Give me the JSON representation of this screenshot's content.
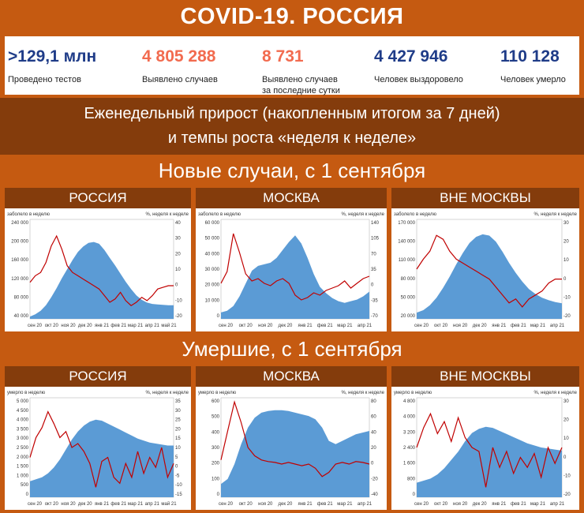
{
  "title": "COVID-19. РОССИЯ",
  "stats": [
    {
      "value": ">129,1 млн",
      "label": "Проведено тестов",
      "color": "#1f3c88"
    },
    {
      "value": "4 805 288",
      "label": "Выявлено случаев",
      "color": "#f26b4f"
    },
    {
      "value": "8 731",
      "label": "Выявлено случаев\nза последние сутки",
      "color": "#f26b4f"
    },
    {
      "value": "4 427 946",
      "label": "Человек выздоровело",
      "color": "#1f3c88"
    },
    {
      "value": "110 128",
      "label": "Человек умерло",
      "color": "#1f3c88"
    }
  ],
  "subtitle": {
    "line1": "Еженедельный прирост (накопленным итогом за 7 дней)",
    "line2": "и темпы роста «неделя к неделе»"
  },
  "sections": {
    "cases": "Новые случаи, с 1 сентября",
    "deaths": "Умершие, с 1 сентября"
  },
  "colors": {
    "band": "#c55a11",
    "band_dark": "#843c0c",
    "area": "#5b9bd5",
    "line": "#c00000"
  },
  "chart_data": [
    {
      "type": "area",
      "title": "РОССИЯ",
      "ylabel_left": "заболело в неделю",
      "ylabel_right": "%, неделя к неделе",
      "left_ticks": [
        "240 000",
        "200 000",
        "160 000",
        "120 000",
        "80 000",
        "40 000"
      ],
      "left_range": [
        30000,
        250000
      ],
      "right_ticks": [
        "40",
        "30",
        "20",
        "10",
        "0",
        "-10",
        "-20"
      ],
      "right_range": [
        -20,
        40
      ],
      "x_ticks": [
        "сен 20",
        "окт 20",
        "ноя 20",
        "дек 20",
        "янв 21",
        "фев 21",
        "мар 21",
        "апр 21",
        "май 21"
      ],
      "series": [
        {
          "name": "заболело в неделю",
          "values": [
            35000,
            40000,
            48000,
            60000,
            78000,
            98000,
            120000,
            140000,
            160000,
            178000,
            190000,
            198000,
            200000,
            196000,
            182000,
            165000,
            148000,
            130000,
            112000,
            96000,
            82000,
            72000,
            66000,
            63000,
            62000,
            61000,
            60000,
            60000
          ]
        },
        {
          "name": "%, неделя к неделе",
          "values": [
            2,
            6,
            8,
            14,
            24,
            30,
            22,
            12,
            8,
            6,
            4,
            2,
            0,
            -2,
            -6,
            -10,
            -8,
            -4,
            -9,
            -12,
            -10,
            -7,
            -9,
            -6,
            -2,
            -1,
            0,
            0
          ]
        }
      ]
    },
    {
      "type": "area",
      "title": "МОСКВА",
      "ylabel_left": "заболело в неделю",
      "ylabel_right": "%, неделя к неделе",
      "left_ticks": [
        "60 000",
        "50 000",
        "40 000",
        "30 000",
        "20 000",
        "10 000",
        "0"
      ],
      "left_range": [
        0,
        62000
      ],
      "right_ticks": [
        "140",
        "105",
        "70",
        "35",
        "0",
        "-35",
        "-70"
      ],
      "right_range": [
        -70,
        140
      ],
      "x_ticks": [
        "сен 20",
        "окт 20",
        "ноя 20",
        "дек 20",
        "янв 21",
        "фев 21",
        "мар 21",
        "апр 21"
      ],
      "series": [
        {
          "name": "заболело в неделю",
          "values": [
            4000,
            5000,
            8000,
            14000,
            22000,
            30000,
            33000,
            34000,
            35000,
            38000,
            43000,
            48000,
            52000,
            47000,
            38000,
            28000,
            20000,
            16000,
            13000,
            11000,
            10000,
            11000,
            12000,
            14000,
            17000
          ]
        },
        {
          "name": "%, неделя к неделе",
          "values": [
            5,
            30,
            110,
            70,
            25,
            10,
            15,
            5,
            0,
            10,
            15,
            5,
            -20,
            -30,
            -25,
            -15,
            -20,
            -10,
            -5,
            0,
            10,
            -5,
            5,
            15,
            20
          ]
        }
      ]
    },
    {
      "type": "area",
      "title": "ВНЕ МОСКВЫ",
      "ylabel_left": "заболело в неделю",
      "ylabel_right": "%, неделя к неделе",
      "left_ticks": [
        "170 000",
        "140 000",
        "110 000",
        "80 000",
        "50 000",
        "20 000"
      ],
      "left_range": [
        20000,
        180000
      ],
      "right_ticks": [
        "30",
        "20",
        "10",
        "0",
        "-10",
        "-20"
      ],
      "right_range": [
        -20,
        30
      ],
      "x_ticks": [
        "сен 20",
        "окт 20",
        "ноя 20",
        "дек 20",
        "янв 21",
        "фев 21",
        "мар 21",
        "апр 21"
      ],
      "series": [
        {
          "name": "заболело в неделю",
          "values": [
            30000,
            34000,
            42000,
            54000,
            70000,
            88000,
            108000,
            126000,
            142000,
            152000,
            156000,
            154000,
            144000,
            128000,
            110000,
            94000,
            80000,
            68000,
            60000,
            54000,
            50000,
            47000,
            45000
          ]
        },
        {
          "name": "%, неделя к неделе",
          "values": [
            5,
            10,
            14,
            22,
            20,
            14,
            10,
            8,
            6,
            4,
            2,
            0,
            -4,
            -8,
            -12,
            -10,
            -14,
            -10,
            -8,
            -6,
            -2,
            0,
            0
          ]
        }
      ]
    },
    {
      "type": "area",
      "title": "РОССИЯ",
      "ylabel_left": "умерло в неделю",
      "ylabel_right": "%, неделя к неделе",
      "left_ticks": [
        "5 000",
        "4 500",
        "4 000",
        "3 500",
        "3 000",
        "2 500",
        "2 000",
        "1 500",
        "1 000",
        "500",
        "0"
      ],
      "left_range": [
        0,
        5000
      ],
      "right_ticks": [
        "35",
        "30",
        "25",
        "20",
        "15",
        "10",
        "5",
        "0",
        "-5",
        "-10",
        "-15"
      ],
      "right_range": [
        -15,
        35
      ],
      "x_ticks": [
        "сен 20",
        "окт 20",
        "ноя 20",
        "дек 20",
        "янв 21",
        "фев 21",
        "мар 21",
        "апр 21",
        "май 21"
      ],
      "series": [
        {
          "name": "умерло в неделю",
          "values": [
            800,
            900,
            1000,
            1200,
            1500,
            1900,
            2400,
            2900,
            3300,
            3600,
            3800,
            3900,
            3850,
            3700,
            3550,
            3400,
            3250,
            3100,
            2950,
            2850,
            2750,
            2700,
            2650,
            2600,
            2600
          ]
        },
        {
          "name": "%, неделя к неделе",
          "values": [
            5,
            15,
            20,
            28,
            22,
            15,
            18,
            10,
            12,
            8,
            2,
            -10,
            3,
            5,
            -5,
            -8,
            2,
            -5,
            8,
            -3,
            5,
            0,
            10,
            -5,
            2
          ]
        }
      ]
    },
    {
      "type": "area",
      "title": "МОСКВА",
      "ylabel_left": "умерло в неделю",
      "ylabel_right": "%, неделя к неделе",
      "left_ticks": [
        "600",
        "500",
        "400",
        "300",
        "200",
        "100",
        "0"
      ],
      "left_range": [
        0,
        600
      ],
      "right_ticks": [
        "80",
        "60",
        "40",
        "20",
        "0",
        "-20",
        "-40"
      ],
      "right_range": [
        -40,
        80
      ],
      "x_ticks": [
        "сен 20",
        "окт 20",
        "ноя 20",
        "дек 20",
        "янв 21",
        "фев 21",
        "мар 21",
        "апр 21"
      ],
      "series": [
        {
          "name": "умерло в неделю",
          "values": [
            80,
            110,
            200,
            320,
            420,
            480,
            510,
            520,
            525,
            525,
            520,
            510,
            500,
            490,
            470,
            420,
            340,
            320,
            340,
            360,
            380,
            390,
            400
          ]
        },
        {
          "name": "%, неделя к неделе",
          "values": [
            5,
            40,
            75,
            50,
            20,
            10,
            5,
            3,
            2,
            0,
            2,
            0,
            -2,
            0,
            -5,
            -15,
            -10,
            0,
            2,
            0,
            3,
            2,
            0
          ]
        }
      ]
    },
    {
      "type": "area",
      "title": "ВНЕ МОСКВЫ",
      "ylabel_left": "умерло в неделю",
      "ylabel_right": "%, неделя к неделе",
      "left_ticks": [
        "4 800",
        "4 000",
        "3 200",
        "2 400",
        "1 600",
        "800",
        "0"
      ],
      "left_range": [
        0,
        4800
      ],
      "right_ticks": [
        "30",
        "20",
        "10",
        "0",
        "-10",
        "-20"
      ],
      "right_range": [
        -20,
        30
      ],
      "x_ticks": [
        "сен 20",
        "окт 20",
        "ноя 20",
        "дек 20",
        "янв 21",
        "фев 21",
        "мар 21",
        "апр 21"
      ],
      "series": [
        {
          "name": "умерло в неделю",
          "values": [
            700,
            800,
            900,
            1100,
            1400,
            1800,
            2200,
            2700,
            3100,
            3300,
            3400,
            3350,
            3200,
            3050,
            2900,
            2750,
            2600,
            2500,
            2400,
            2350,
            2300,
            2250
          ]
        },
        {
          "name": "%, неделя к неделе",
          "values": [
            5,
            15,
            22,
            12,
            18,
            8,
            20,
            10,
            5,
            3,
            -15,
            5,
            -5,
            3,
            -8,
            0,
            -5,
            2,
            -10,
            5,
            -3,
            5
          ]
        }
      ]
    }
  ]
}
